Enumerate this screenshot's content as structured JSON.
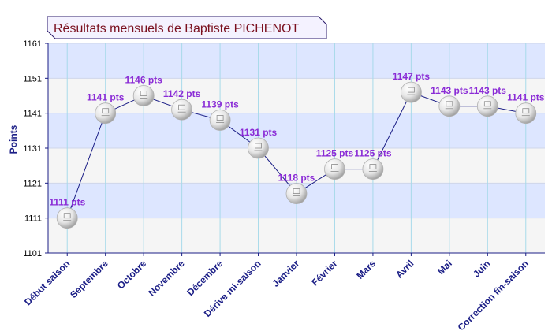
{
  "chart_data": {
    "type": "line",
    "title": "Résultats mensuels de Baptiste PICHENOT",
    "xlabel": "",
    "ylabel": "Points",
    "ylim": [
      1101,
      1161
    ],
    "yticks": [
      1101,
      1111,
      1121,
      1131,
      1141,
      1151,
      1161
    ],
    "categories": [
      "Début saison",
      "Septembre",
      "Octobre",
      "Novembre",
      "Décembre",
      "Dérive mi-saison",
      "Janvier",
      "Février",
      "Mars",
      "Avril",
      "Mai",
      "Juin",
      "Correction fin-saison"
    ],
    "series": [
      {
        "values": [
          1111,
          1141,
          1146,
          1142,
          1139,
          1131,
          1118,
          1125,
          1125,
          1147,
          1143,
          1143,
          1141
        ],
        "labels": [
          "1111 pts",
          "1141 pts",
          "1146 pts",
          "1142 pts",
          "1139 pts",
          "1131 pts",
          "1118 pts",
          "1125 pts",
          "1125 pts",
          "1147 pts",
          "1143 pts",
          "1143 pts",
          "1141 pts"
        ]
      }
    ],
    "grid": true,
    "legend": "none",
    "marker": "ping-pong-ball-icon",
    "colors": {
      "line": "#1b1e86",
      "labels": "#8a2bd6",
      "title": "#7a0f1e",
      "band_a": "#dde6ff",
      "band_b": "#f5f5f5"
    }
  }
}
